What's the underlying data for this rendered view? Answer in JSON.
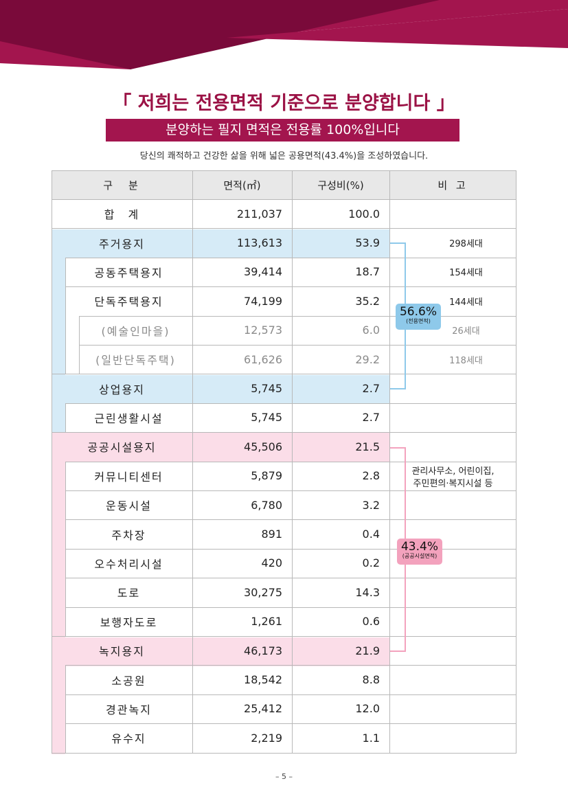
{
  "title": "「 저희는 전용면적 기준으로 분양합니다 」",
  "subtitle": "분양하는 필지 면적은 전용률 100%입니다",
  "description": "당신의 쾌적하고 건강한 삶을 위해 넓은 공용면적(43.4%)을 조성하였습니다.",
  "table": {
    "headers": [
      "구　분",
      "면적(㎡)",
      "구성비(%)",
      "비 고"
    ],
    "rows": [
      {
        "name": "합　계",
        "area": "211,037",
        "ratio": "100.0",
        "note": ""
      },
      {
        "name": "주거용지",
        "area": "113,613",
        "ratio": "53.9",
        "note": "298세대"
      },
      {
        "name": "공동주택용지",
        "area": "39,414",
        "ratio": "18.7",
        "note": "154세대"
      },
      {
        "name": "단독주택용지",
        "area": "74,199",
        "ratio": "35.2",
        "note": "144세대"
      },
      {
        "name": "(예술인마을)",
        "area": "12,573",
        "ratio": "6.0",
        "note": "26세대"
      },
      {
        "name": "(일반단독주택)",
        "area": "61,626",
        "ratio": "29.2",
        "note": "118세대"
      },
      {
        "name": "상업용지",
        "area": "5,745",
        "ratio": "2.7",
        "note": ""
      },
      {
        "name": "근린생활시설",
        "area": "5,745",
        "ratio": "2.7",
        "note": ""
      },
      {
        "name": "공공시설용지",
        "area": "45,506",
        "ratio": "21.5",
        "note": ""
      },
      {
        "name": "커뮤니티센터",
        "area": "5,879",
        "ratio": "2.8",
        "note": ""
      },
      {
        "name": "운동시설",
        "area": "6,780",
        "ratio": "3.2",
        "note": ""
      },
      {
        "name": "주차장",
        "area": "891",
        "ratio": "0.4",
        "note": ""
      },
      {
        "name": "오수처리시설",
        "area": "420",
        "ratio": "0.2",
        "note": ""
      },
      {
        "name": "도로",
        "area": "30,275",
        "ratio": "14.3",
        "note": ""
      },
      {
        "name": "보행자도로",
        "area": "1,261",
        "ratio": "0.6",
        "note": ""
      },
      {
        "name": "녹지용지",
        "area": "46,173",
        "ratio": "21.9",
        "note": ""
      },
      {
        "name": "소공원",
        "area": "18,542",
        "ratio": "8.8",
        "note": ""
      },
      {
        "name": "경관녹지",
        "area": "25,412",
        "ratio": "12.0",
        "note": ""
      },
      {
        "name": "유수지",
        "area": "2,219",
        "ratio": "1.1",
        "note": ""
      }
    ],
    "public_note_line1": "관리사무소, 어린이집,",
    "public_note_line2": "주민편의·복지시설 등"
  },
  "badges": {
    "private": {
      "value": "56.6%",
      "label": "(전용면적)"
    },
    "public": {
      "value": "43.4%",
      "label": "(공공시설면적)"
    }
  },
  "colors": {
    "brand": "#a3154e",
    "title": "#9b1245",
    "blue_fill": "#d6ebf7",
    "pink_fill": "#fbdde8",
    "blue_badge": "#8ec9ea",
    "pink_badge": "#f3a2bd"
  },
  "page_number": "– 5 –"
}
